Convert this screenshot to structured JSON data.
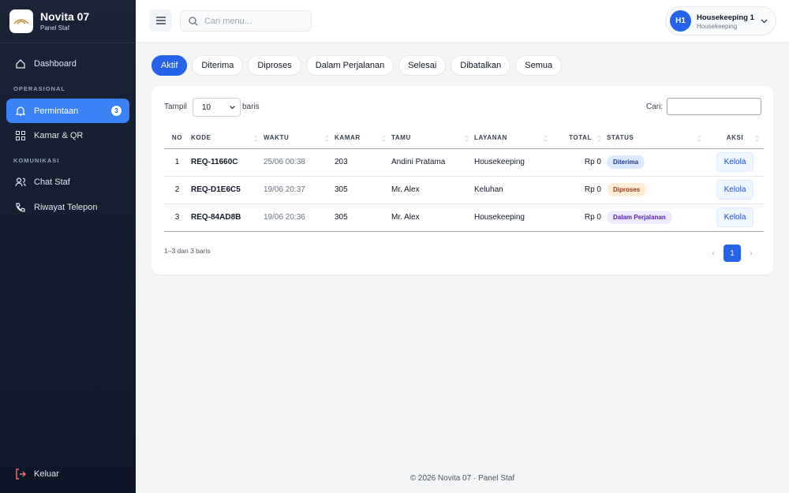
{
  "sidebar": {
    "brand": "Novita 07",
    "subtitle": "Panel Staf",
    "items": [
      {
        "label": "Dashboard"
      },
      {
        "section": "OPERASIONAL"
      },
      {
        "label": "Permintaan",
        "badge": 3
      },
      {
        "label": "Kamar & QR"
      },
      {
        "section": "KOMUNIKASI"
      },
      {
        "label": "Chat Staf"
      },
      {
        "label": "Riwayat Telepon"
      }
    ],
    "logout": "Keluar"
  },
  "topbar": {
    "search_placeholder": "Cari menu...",
    "user": {
      "initials": "H1",
      "name": "Housekeeping 1",
      "role": "Housekeeping"
    }
  },
  "tabs": [
    "Aktif",
    "Diterima",
    "Diproses",
    "Dalam Perjalanan",
    "Selesai",
    "Dibatalkan",
    "Semua"
  ],
  "table": {
    "show_label": "Tampil",
    "page_size": "10",
    "rows_label": "baris",
    "search_label": "Cari:",
    "columns": [
      "NO",
      "KODE",
      "WAKTU",
      "KAMAR",
      "TAMU",
      "LAYANAN",
      "TOTAL",
      "STATUS",
      "AKSI"
    ],
    "rows": [
      [
        1,
        "REQ-11660C",
        "25/06 00:38",
        "203",
        "Andini Pratama",
        "Housekeeping",
        "Rp 0",
        "Diterima",
        "Kelola"
      ],
      [
        2,
        "REQ-D1E6C5",
        "19/06 20:37",
        "305",
        "Mr. Alex",
        "Keluhan",
        "Rp 0",
        "Diproses",
        "Kelola"
      ],
      [
        3,
        "REQ-84AD8B",
        "19/06 20:36",
        "305",
        "Mr. Alex",
        "Housekeeping",
        "Rp 0",
        "Dalam Perjalanan",
        "Kelola"
      ]
    ],
    "info": "1–3 dari 3 baris",
    "pagination": [
      "‹",
      "1",
      "›"
    ]
  },
  "footer": "© 2026 Novita 07 · Panel Staf"
}
